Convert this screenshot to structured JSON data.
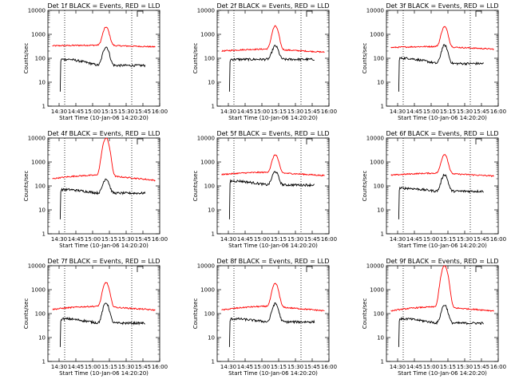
{
  "chart_data": {
    "type": "line",
    "layout": "3x3 grid",
    "x_axis": {
      "label": "Start Time (10-Jan-06 14:20:20)",
      "tick_labels": [
        "14:30",
        "14:45",
        "15:00",
        "15:15",
        "15:30",
        "15:45",
        "16:00"
      ],
      "range_minutes_from_1420": [
        0,
        100
      ],
      "dotted_vertical_lines_at": [
        "14:35",
        "15:35"
      ]
    },
    "y_axis": {
      "label": "Counts/sec",
      "scale": "log",
      "range": [
        1,
        10000
      ],
      "tick_labels": [
        "1",
        "10",
        "100",
        "1000",
        "10000"
      ]
    },
    "series_colors": {
      "events": "#000000",
      "lld": "#ff0000"
    },
    "panels": [
      {
        "title": "Det 1f BLACK = Events, RED = LLD",
        "events": {
          "start_x": 4,
          "base": 50,
          "rise": 90,
          "peak": 300
        },
        "lld": {
          "start": 330,
          "base": 350,
          "end": 300,
          "peak": 2000
        }
      },
      {
        "title": "Det 2f BLACK = Events, RED = LLD",
        "events": {
          "start_x": 4,
          "base": 90,
          "rise": 90,
          "peak": 330
        },
        "lld": {
          "start": 200,
          "base": 240,
          "end": 180,
          "peak": 2200
        }
      },
      {
        "title": "Det 3f BLACK = Events, RED = LLD",
        "events": {
          "start_x": 4,
          "base": 60,
          "rise": 100,
          "peak": 350
        },
        "lld": {
          "start": 280,
          "base": 310,
          "end": 240,
          "peak": 2100
        }
      },
      {
        "title": "Det 4f BLACK = Events, RED = LLD",
        "events": {
          "start_x": 4,
          "base": 50,
          "rise": 70,
          "peak": 200
        },
        "lld": {
          "start": 200,
          "base": 280,
          "end": 170,
          "peak": 10000
        }
      },
      {
        "title": "Det 5f BLACK = Events, RED = LLD",
        "events": {
          "start_x": 4,
          "base": 110,
          "rise": 160,
          "peak": 400
        },
        "lld": {
          "start": 300,
          "base": 370,
          "end": 270,
          "peak": 2000
        }
      },
      {
        "title": "Det 6f BLACK = Events, RED = LLD",
        "events": {
          "start_x": 4,
          "base": 60,
          "rise": 80,
          "peak": 300
        },
        "lld": {
          "start": 280,
          "base": 340,
          "end": 260,
          "peak": 2100
        }
      },
      {
        "title": "Det 7f BLACK = Events, RED = LLD",
        "events": {
          "start_x": 4,
          "base": 40,
          "rise": 60,
          "peak": 280
        },
        "lld": {
          "start": 150,
          "base": 200,
          "end": 140,
          "peak": 2000
        }
      },
      {
        "title": "Det 8f BLACK = Events, RED = LLD",
        "events": {
          "start_x": 4,
          "base": 45,
          "rise": 60,
          "peak": 260
        },
        "lld": {
          "start": 140,
          "base": 200,
          "end": 130,
          "peak": 1800
        }
      },
      {
        "title": "Det 9f BLACK = Events, RED = LLD",
        "events": {
          "start_x": 4,
          "base": 40,
          "rise": 60,
          "peak": 230
        },
        "lld": {
          "start": 130,
          "base": 190,
          "end": 130,
          "peak": 10000
        }
      }
    ]
  }
}
